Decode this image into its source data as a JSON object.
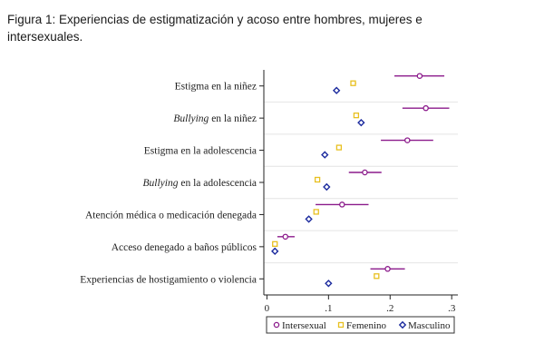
{
  "caption": "Figura 1: Experiencias de estigmatización y acoso entre hombres, mujeres e intersexuales.",
  "chart_data": {
    "type": "scatter",
    "subtype": "horizontal dot plot with confidence intervals",
    "categories": [
      {
        "prefix": "",
        "italic": "",
        "rest": "Estigma en la niñez"
      },
      {
        "prefix": "",
        "italic": "Bullying",
        "rest": " en la niñez"
      },
      {
        "prefix": "",
        "italic": "",
        "rest": "Estigma en la adolescencia"
      },
      {
        "prefix": "",
        "italic": "Bullying",
        "rest": " en la adolescencia"
      },
      {
        "prefix": "",
        "italic": "",
        "rest": "Atención médica o medicación denegada"
      },
      {
        "prefix": "",
        "italic": "",
        "rest": "Acceso denegado a baños públicos"
      },
      {
        "prefix": "",
        "italic": "",
        "rest": "Experiencias de hostigamiento o violencia"
      }
    ],
    "series": [
      {
        "name": "Intersexual",
        "color": "#8b1a8b",
        "marker": "circle",
        "values": [
          0.248,
          0.258,
          0.228,
          0.159,
          0.122,
          0.03,
          0.196
        ],
        "ci_low": [
          0.207,
          0.22,
          0.185,
          0.133,
          0.079,
          0.017,
          0.168
        ],
        "ci_high": [
          0.288,
          0.296,
          0.27,
          0.186,
          0.165,
          0.045,
          0.224
        ]
      },
      {
        "name": "Femenino",
        "color": "#e8c020",
        "marker": "square",
        "values": [
          0.14,
          0.145,
          0.117,
          0.082,
          0.08,
          0.013,
          0.178
        ],
        "ci_low": [
          0.136,
          0.141,
          0.113,
          0.079,
          0.077,
          0.011,
          0.174
        ],
        "ci_high": [
          0.145,
          0.149,
          0.121,
          0.085,
          0.083,
          0.015,
          0.182
        ]
      },
      {
        "name": "Masculino",
        "color": "#1c2b9e",
        "marker": "diamond",
        "values": [
          0.113,
          0.153,
          0.094,
          0.097,
          0.068,
          0.013,
          0.1
        ],
        "ci_low": [
          0.109,
          0.148,
          0.09,
          0.093,
          0.065,
          0.011,
          0.097
        ],
        "ci_high": [
          0.117,
          0.158,
          0.098,
          0.101,
          0.071,
          0.015,
          0.103
        ]
      }
    ],
    "xticks": [
      0,
      0.1,
      0.2,
      0.3
    ],
    "xtick_labels": [
      "0",
      ".1",
      ".2",
      ".3"
    ],
    "xlim": [
      -0.005,
      0.31
    ],
    "grid": "horizontal lines between categories",
    "legend_position": "bottom"
  }
}
